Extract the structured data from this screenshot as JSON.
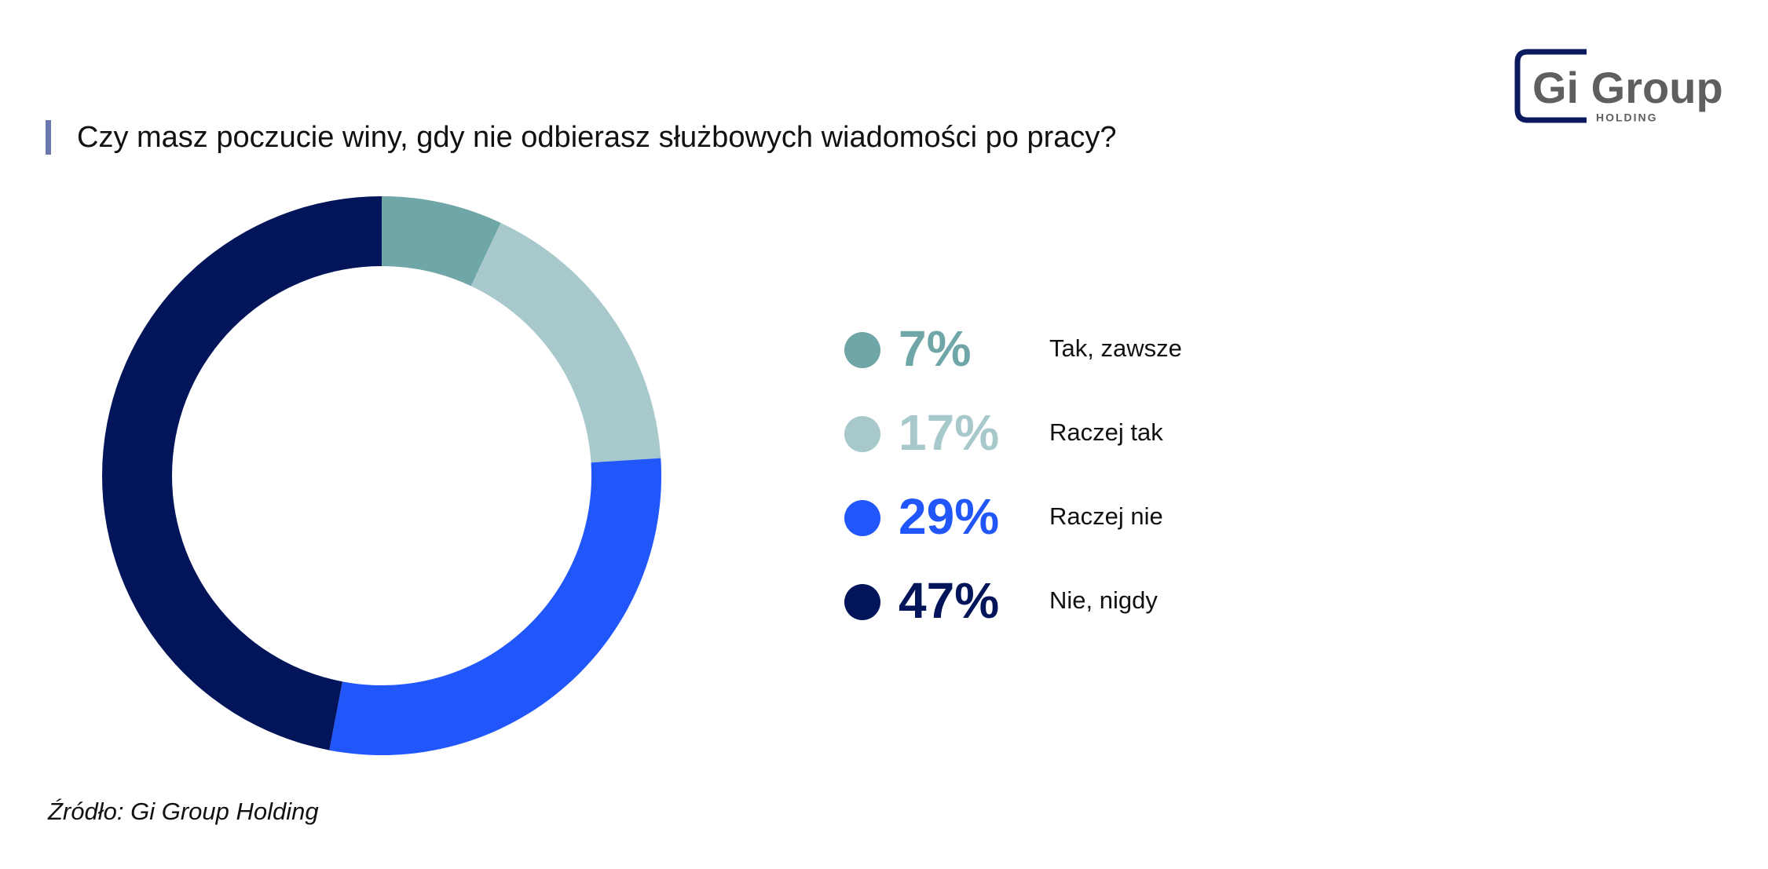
{
  "chart_data": {
    "type": "donut",
    "title": "Czy masz poczucie winy, gdy nie odbierasz służbowych wiadomości po pracy?",
    "categories": [
      "Tak, zawsze",
      "Raczej tak",
      "Raczej nie",
      "Nie, nigdy"
    ],
    "values": [
      7,
      17,
      29,
      47
    ],
    "value_labels": [
      "7%",
      "17%",
      "29%",
      "47%"
    ],
    "colors": [
      "#6fa6a8",
      "#a8c9cc",
      "#2157fa",
      "#03155a"
    ],
    "source": "Źródło: Gi Group Holding"
  },
  "logo": {
    "name": "Gi Group",
    "sub": "HOLDING"
  }
}
